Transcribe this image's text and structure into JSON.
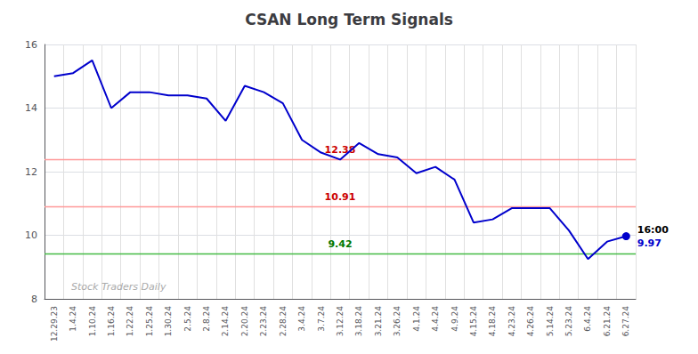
{
  "chart_data": {
    "type": "line",
    "title": "CSAN Long Term Signals",
    "categories": [
      "12.29.23",
      "1.4.24",
      "1.10.24",
      "1.16.24",
      "1.22.24",
      "1.25.24",
      "1.30.24",
      "2.5.24",
      "2.8.24",
      "2.14.24",
      "2.20.24",
      "2.23.24",
      "2.28.24",
      "3.4.24",
      "3.7.24",
      "3.12.24",
      "3.18.24",
      "3.21.24",
      "3.26.24",
      "4.1.24",
      "4.4.24",
      "4.9.24",
      "4.15.24",
      "4.18.24",
      "4.23.24",
      "4.26.24",
      "5.14.24",
      "5.23.24",
      "6.4.24",
      "6.21.24",
      "6.27.24"
    ],
    "values": [
      15.0,
      15.1,
      15.5,
      14.0,
      14.5,
      14.5,
      14.4,
      14.4,
      14.3,
      13.6,
      14.7,
      14.5,
      14.15,
      13.0,
      12.6,
      12.38,
      12.9,
      12.55,
      12.45,
      11.95,
      12.15,
      11.75,
      10.4,
      10.5,
      10.85,
      10.85,
      10.85,
      10.15,
      9.25,
      9.8,
      9.97
    ],
    "color": "#0000cc",
    "marker": "circle",
    "ylim": [
      8,
      16
    ],
    "yticks": [
      8,
      10,
      12,
      14,
      16
    ],
    "grid": true,
    "hlines": [
      {
        "value": 12.38,
        "label": "12.38",
        "color": "#ff9999",
        "label_color": "#cc0000"
      },
      {
        "value": 10.91,
        "label": "10.91",
        "color": "#ff9999",
        "label_color": "#cc0000"
      },
      {
        "value": 9.42,
        "label": "9.42",
        "color": "#44bb44",
        "label_color": "#007700"
      }
    ],
    "annotations": [
      {
        "text": "16:00",
        "color": "#000000"
      },
      {
        "text": "9.97",
        "color": "#0000cc"
      }
    ],
    "watermark": {
      "text": "Stock Traders Daily",
      "color": "#aaaaaa"
    }
  }
}
